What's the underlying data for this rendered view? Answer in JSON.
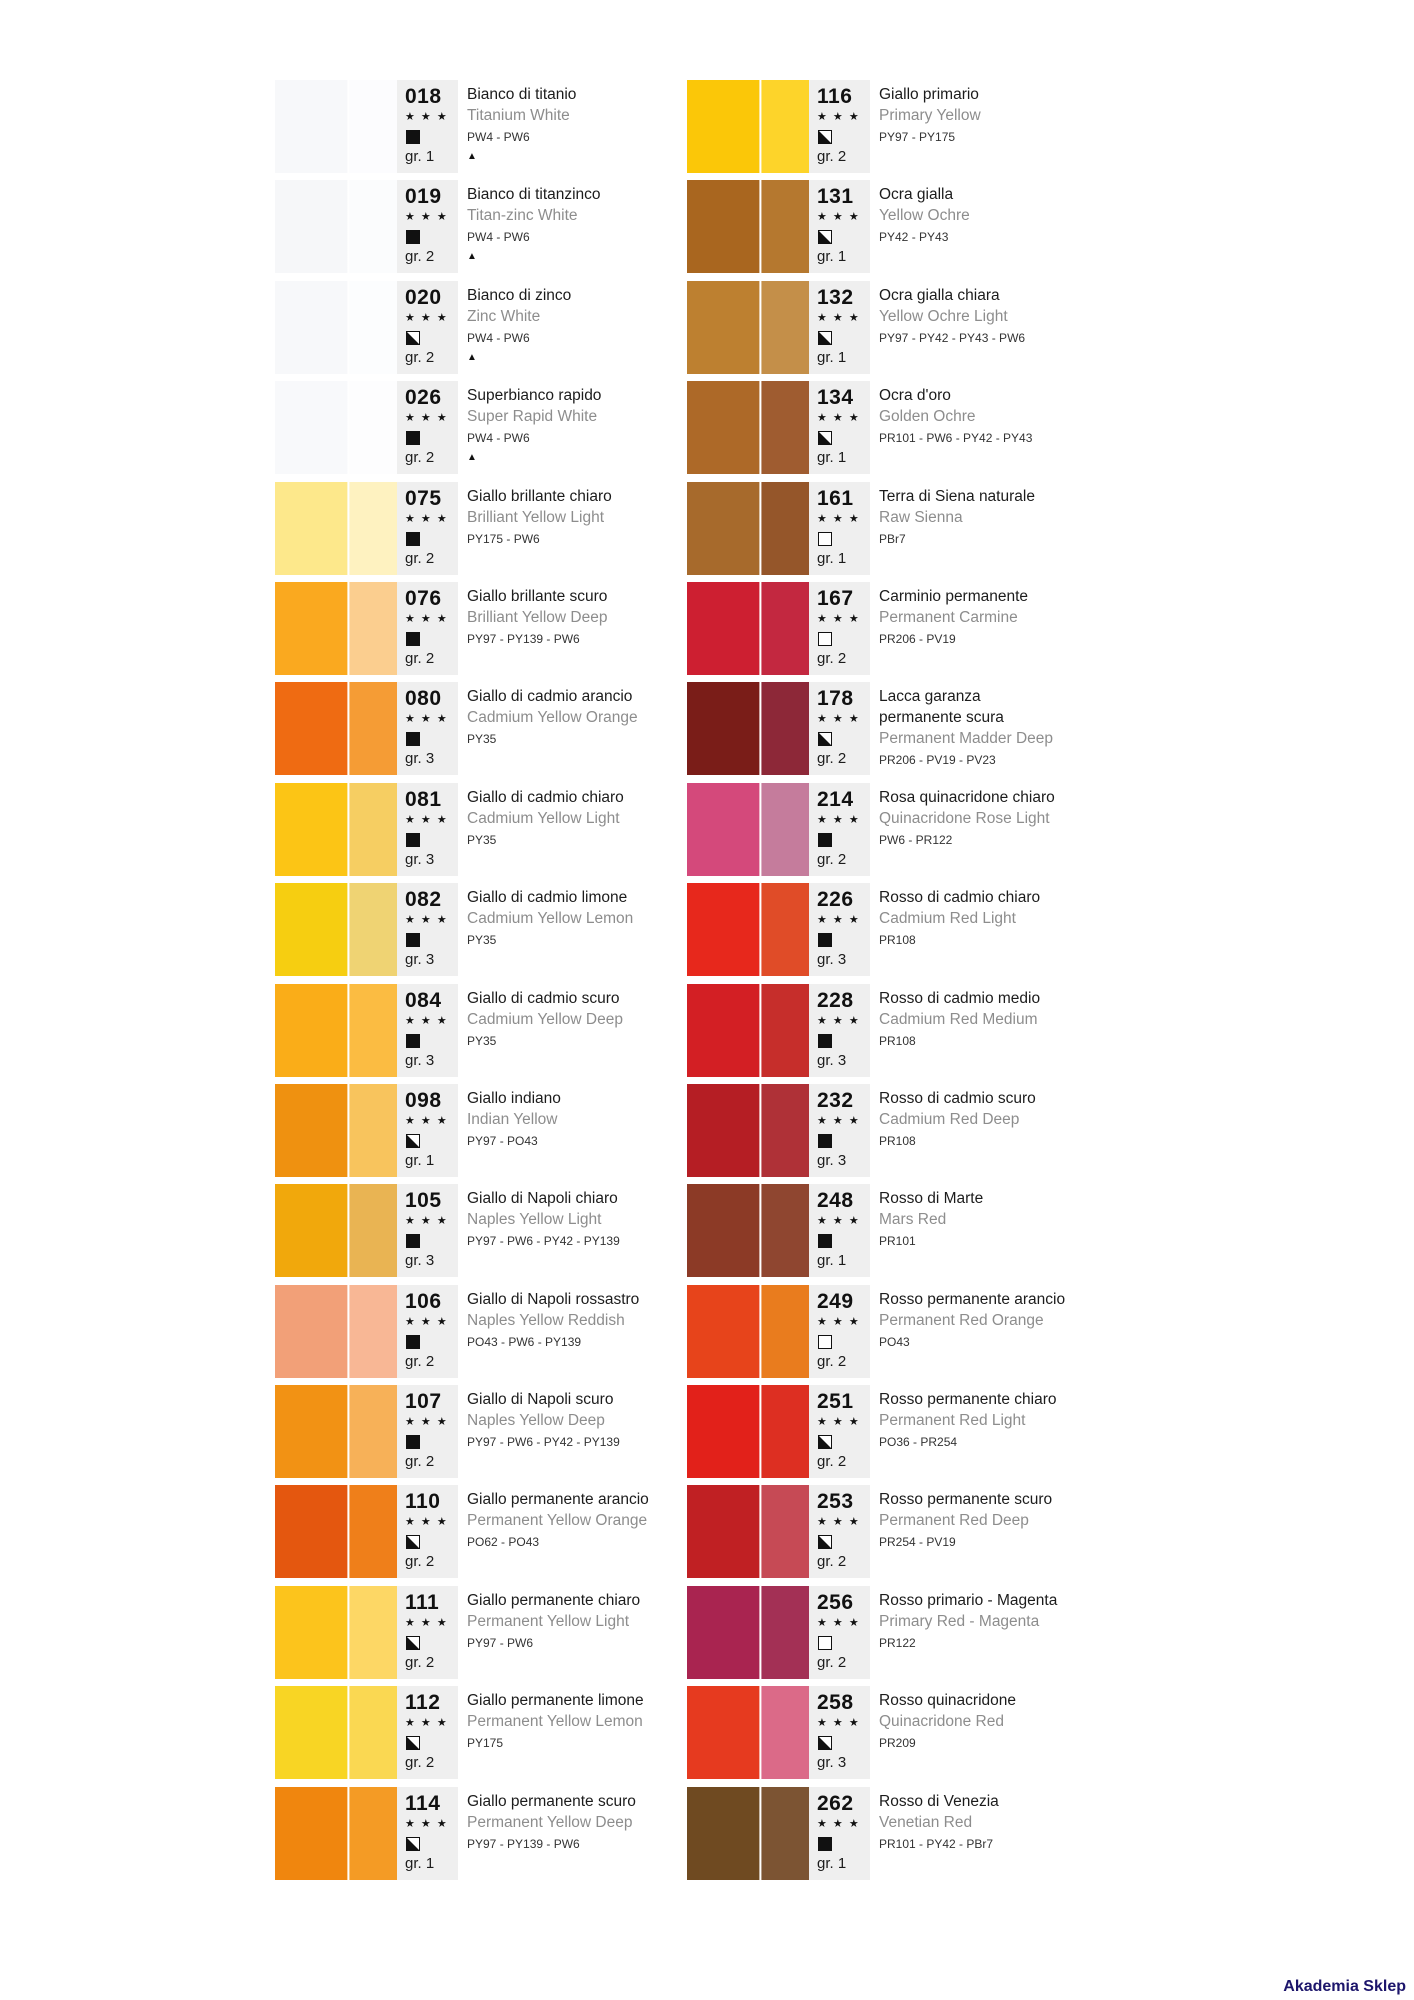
{
  "footer": {
    "text": "Akademia Sklep",
    "color": "#1c156b"
  },
  "legend": {
    "stars": "★ ★ ★",
    "triangle": "▲",
    "info_box_background": "#efefef"
  },
  "columns": [
    {
      "entries": [
        {
          "code": "018",
          "name_it": "Bianco di titanio",
          "name_en": "Titanium White",
          "pigments": "PW4 - PW6",
          "group": "gr. 1",
          "opacity": "opaque",
          "drying_triangle": true,
          "swatch": {
            "main": "#f7f8fa",
            "tint": "#fcfcfe"
          }
        },
        {
          "code": "019",
          "name_it": "Bianco di titanzinco",
          "name_en": "Titan-zinc White",
          "pigments": "PW4 - PW6",
          "group": "gr. 2",
          "opacity": "opaque",
          "drying_triangle": true,
          "swatch": {
            "main": "#f6f7f9",
            "tint": "#fbfcfd"
          }
        },
        {
          "code": "020",
          "name_it": "Bianco di zinco",
          "name_en": "Zinc White",
          "pigments": "PW4 - PW6",
          "group": "gr. 2",
          "opacity": "semi",
          "drying_triangle": true,
          "swatch": {
            "main": "#f7f8fa",
            "tint": "#fcfdfe"
          }
        },
        {
          "code": "026",
          "name_it": "Superbianco rapido",
          "name_en": "Super Rapid White",
          "pigments": "PW4 - PW6",
          "group": "gr. 2",
          "opacity": "opaque",
          "drying_triangle": true,
          "swatch": {
            "main": "#f8f9fb",
            "tint": "#fdfdfe"
          }
        },
        {
          "code": "075",
          "name_it": "Giallo brillante chiaro",
          "name_en": "Brilliant Yellow Light",
          "pigments": "PY175 - PW6",
          "group": "gr. 2",
          "opacity": "opaque",
          "drying_triangle": false,
          "swatch": {
            "main": "#fde88b",
            "tint": "#fef2c0"
          }
        },
        {
          "code": "076",
          "name_it": "Giallo brillante scuro",
          "name_en": "Brilliant Yellow Deep",
          "pigments": "PY97 - PY139 - PW6",
          "group": "gr. 2",
          "opacity": "opaque",
          "drying_triangle": false,
          "swatch": {
            "main": "#faa91f",
            "tint": "#fbce8f"
          }
        },
        {
          "code": "080",
          "name_it": "Giallo di cadmio arancio",
          "name_en": "Cadmium Yellow Orange",
          "pigments": "PY35",
          "group": "gr. 3",
          "opacity": "opaque",
          "drying_triangle": false,
          "swatch": {
            "main": "#ef6b12",
            "tint": "#f59c35"
          }
        },
        {
          "code": "081",
          "name_it": "Giallo di cadmio chiaro",
          "name_en": "Cadmium Yellow Light",
          "pigments": "PY35",
          "group": "gr. 3",
          "opacity": "opaque",
          "drying_triangle": false,
          "swatch": {
            "main": "#fcc515",
            "tint": "#f6ce62"
          }
        },
        {
          "code": "082",
          "name_it": "Giallo di cadmio limone",
          "name_en": "Cadmium Yellow Lemon",
          "pigments": "PY35",
          "group": "gr. 3",
          "opacity": "opaque",
          "drying_triangle": false,
          "swatch": {
            "main": "#f6ce11",
            "tint": "#efd373"
          }
        },
        {
          "code": "084",
          "name_it": "Giallo di cadmio scuro",
          "name_en": "Cadmium Yellow Deep",
          "pigments": "PY35",
          "group": "gr. 3",
          "opacity": "opaque",
          "drying_triangle": false,
          "swatch": {
            "main": "#faad18",
            "tint": "#fbbc42"
          }
        },
        {
          "code": "098",
          "name_it": "Giallo indiano",
          "name_en": "Indian Yellow",
          "pigments": "PY97 - PO43",
          "group": "gr. 1",
          "opacity": "semi",
          "drying_triangle": false,
          "swatch": {
            "main": "#ef9110",
            "tint": "#f8c45d"
          }
        },
        {
          "code": "105",
          "name_it": "Giallo di Napoli chiaro",
          "name_en": "Naples Yellow Light",
          "pigments": "PY97 - PW6 - PY42 - PY139",
          "group": "gr. 3",
          "opacity": "opaque",
          "drying_triangle": false,
          "swatch": {
            "main": "#f1a80c",
            "tint": "#e9b453"
          }
        },
        {
          "code": "106",
          "name_it": "Giallo di Napoli rossastro",
          "name_en": "Naples Yellow Reddish",
          "pigments": "PO43 - PW6 - PY139",
          "group": "gr. 2",
          "opacity": "opaque",
          "drying_triangle": false,
          "swatch": {
            "main": "#f2a078",
            "tint": "#f8b795"
          }
        },
        {
          "code": "107",
          "name_it": "Giallo di Napoli scuro",
          "name_en": "Naples Yellow Deep",
          "pigments": "PY97 - PW6 - PY42 - PY139",
          "group": "gr. 2",
          "opacity": "opaque",
          "drying_triangle": false,
          "swatch": {
            "main": "#f29214",
            "tint": "#f7b158"
          }
        },
        {
          "code": "110",
          "name_it": "Giallo permanente arancio",
          "name_en": "Permanent Yellow Orange",
          "pigments": "PO62 - PO43",
          "group": "gr. 2",
          "opacity": "semi",
          "drying_triangle": false,
          "swatch": {
            "main": "#e4570f",
            "tint": "#ef7f1a"
          }
        },
        {
          "code": "111",
          "name_it": "Giallo permanente chiaro",
          "name_en": "Permanent Yellow Light",
          "pigments": "PY97 - PW6",
          "group": "gr. 2",
          "opacity": "semi",
          "drying_triangle": false,
          "swatch": {
            "main": "#fcc41c",
            "tint": "#fdd765"
          }
        },
        {
          "code": "112",
          "name_it": "Giallo permanente limone",
          "name_en": "Permanent Yellow Lemon",
          "pigments": "PY175",
          "group": "gr. 2",
          "opacity": "semi",
          "drying_triangle": false,
          "swatch": {
            "main": "#f8d524",
            "tint": "#fad852"
          }
        },
        {
          "code": "114",
          "name_it": "Giallo permanente scuro",
          "name_en": "Permanent Yellow Deep",
          "pigments": "PY97 - PY139 - PW6",
          "group": "gr. 1",
          "opacity": "semi",
          "drying_triangle": false,
          "swatch": {
            "main": "#f0860e",
            "tint": "#f49b25"
          }
        }
      ]
    },
    {
      "entries": [
        {
          "code": "116",
          "name_it": "Giallo primario",
          "name_en": "Primary Yellow",
          "pigments": "PY97 - PY175",
          "group": "gr. 2",
          "opacity": "semi",
          "drying_triangle": false,
          "swatch": {
            "main": "#fbc708",
            "tint": "#fdd42a"
          }
        },
        {
          "code": "131",
          "name_it": "Ocra gialla",
          "name_en": "Yellow Ochre",
          "pigments": "PY42 - PY43",
          "group": "gr. 1",
          "opacity": "semi",
          "drying_triangle": false,
          "swatch": {
            "main": "#a9661f",
            "tint": "#b5782f"
          }
        },
        {
          "code": "132",
          "name_it": "Ocra gialla chiara",
          "name_en": "Yellow Ochre Light",
          "pigments": "PY97 - PY42 - PY43 - PW6",
          "group": "gr. 1",
          "opacity": "semi",
          "drying_triangle": false,
          "swatch": {
            "main": "#bd8030",
            "tint": "#c48f49"
          }
        },
        {
          "code": "134",
          "name_it": "Ocra d'oro",
          "name_en": "Golden Ochre",
          "pigments": "PR101 - PW6 - PY42 - PY43",
          "group": "gr. 1",
          "opacity": "semi",
          "drying_triangle": false,
          "swatch": {
            "main": "#ad6928",
            "tint": "#9f5c30"
          }
        },
        {
          "code": "161",
          "name_it": "Terra di Siena naturale",
          "name_en": "Raw Sienna",
          "pigments": "PBr7",
          "group": "gr. 1",
          "opacity": "transparent",
          "drying_triangle": false,
          "swatch": {
            "main": "#a76a2c",
            "tint": "#95562a"
          }
        },
        {
          "code": "167",
          "name_it": "Carminio permanente",
          "name_en": "Permanent Carmine",
          "pigments": "PR206 - PV19",
          "group": "gr. 2",
          "opacity": "transparent",
          "drying_triangle": false,
          "swatch": {
            "main": "#cd1f31",
            "tint": "#c32840"
          }
        },
        {
          "code": "178",
          "name_it": "Lacca garanza\npermanente scura",
          "name_en": "Permanent Madder Deep",
          "pigments": "PR206 - PV19 - PV23",
          "group": "gr. 2",
          "opacity": "semi",
          "drying_triangle": false,
          "swatch": {
            "main": "#7a1d18",
            "tint": "#8d2838"
          }
        },
        {
          "code": "214",
          "name_it": "Rosa quinacridone chiaro",
          "name_en": "Quinacridone Rose Light",
          "pigments": "PW6 - PR122",
          "group": "gr. 2",
          "opacity": "opaque",
          "drying_triangle": false,
          "swatch": {
            "main": "#d4497b",
            "tint": "#c57c9c"
          }
        },
        {
          "code": "226",
          "name_it": "Rosso di cadmio chiaro",
          "name_en": "Cadmium Red Light",
          "pigments": "PR108",
          "group": "gr. 3",
          "opacity": "opaque",
          "drying_triangle": false,
          "swatch": {
            "main": "#e7281c",
            "tint": "#e04c28"
          }
        },
        {
          "code": "228",
          "name_it": "Rosso di cadmio medio",
          "name_en": "Cadmium Red Medium",
          "pigments": "PR108",
          "group": "gr. 3",
          "opacity": "opaque",
          "drying_triangle": false,
          "swatch": {
            "main": "#d31f24",
            "tint": "#c62e2b"
          }
        },
        {
          "code": "232",
          "name_it": "Rosso di cadmio scuro",
          "name_en": "Cadmium Red Deep",
          "pigments": "PR108",
          "group": "gr. 3",
          "opacity": "opaque",
          "drying_triangle": false,
          "swatch": {
            "main": "#b51e24",
            "tint": "#af3137"
          }
        },
        {
          "code": "248",
          "name_it": "Rosso di Marte",
          "name_en": "Mars Red",
          "pigments": "PR101",
          "group": "gr. 1",
          "opacity": "opaque",
          "drying_triangle": false,
          "swatch": {
            "main": "#8c3a26",
            "tint": "#8f4630"
          }
        },
        {
          "code": "249",
          "name_it": "Rosso permanente arancio",
          "name_en": "Permanent Red Orange",
          "pigments": "PO43",
          "group": "gr. 2",
          "opacity": "transparent",
          "drying_triangle": false,
          "swatch": {
            "main": "#e7441b",
            "tint": "#e97c1e"
          }
        },
        {
          "code": "251",
          "name_it": "Rosso permanente chiaro",
          "name_en": "Permanent Red Light",
          "pigments": "PO36 - PR254",
          "group": "gr. 2",
          "opacity": "semi",
          "drying_triangle": false,
          "swatch": {
            "main": "#e2211a",
            "tint": "#dd2f22"
          }
        },
        {
          "code": "253",
          "name_it": "Rosso permanente scuro",
          "name_en": "Permanent Red Deep",
          "pigments": "PR254 - PV19",
          "group": "gr. 2",
          "opacity": "semi",
          "drying_triangle": false,
          "swatch": {
            "main": "#c02023",
            "tint": "#c64a55"
          }
        },
        {
          "code": "256",
          "name_it": "Rosso primario - Magenta",
          "name_en": "Primary Red - Magenta",
          "pigments": "PR122",
          "group": "gr. 2",
          "opacity": "transparent",
          "drying_triangle": false,
          "swatch": {
            "main": "#a92450",
            "tint": "#a33055"
          }
        },
        {
          "code": "258",
          "name_it": "Rosso quinacridone",
          "name_en": "Quinacridone Red",
          "pigments": "PR209",
          "group": "gr. 3",
          "opacity": "semi",
          "drying_triangle": false,
          "swatch": {
            "main": "#e63a1f",
            "tint": "#db6a88"
          }
        },
        {
          "code": "262",
          "name_it": "Rosso di Venezia",
          "name_en": "Venetian Red",
          "pigments": "PR101 - PY42 - PBr7",
          "group": "gr. 1",
          "opacity": "opaque",
          "drying_triangle": false,
          "swatch": {
            "main": "#6f4a21",
            "tint": "#7c5433"
          }
        }
      ]
    }
  ]
}
